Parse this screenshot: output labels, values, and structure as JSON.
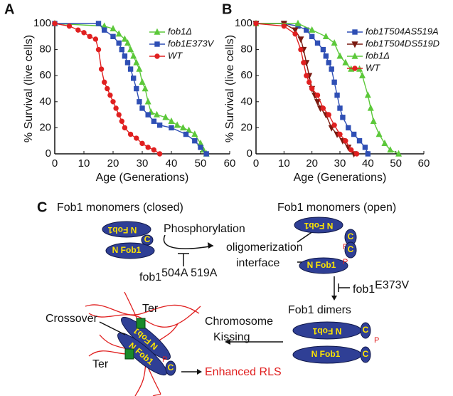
{
  "chart_data": [
    {
      "type": "line",
      "x_label": "Age (Generations)",
      "y_label": "% Survival (live cells)",
      "xlim": [
        0,
        60
      ],
      "ylim": [
        0,
        100
      ],
      "xticks": [
        0,
        10,
        20,
        30,
        40,
        50,
        60
      ],
      "yticks": [
        0,
        20,
        40,
        60,
        80,
        100
      ],
      "legend": "upper right",
      "series": [
        {
          "name": "fob1Δ",
          "color": "#5cc83a",
          "marker": "triangle",
          "x": [
            0,
            17,
            20,
            22,
            24,
            25,
            26,
            27,
            28,
            29,
            30,
            31,
            32,
            33,
            35,
            38,
            40,
            42,
            44,
            46,
            48,
            50,
            51,
            52
          ],
          "values": [
            100,
            98,
            96,
            92,
            88,
            85,
            80,
            75,
            70,
            65,
            55,
            50,
            40,
            32,
            30,
            28,
            25,
            22,
            20,
            18,
            15,
            8,
            3,
            0
          ]
        },
        {
          "name": "fob1E373V",
          "color": "#2f4fb5",
          "marker": "square",
          "x": [
            0,
            15,
            17,
            20,
            22,
            23,
            24,
            25,
            26,
            27,
            28,
            29,
            30,
            32,
            34,
            36,
            40,
            45,
            48,
            50,
            52
          ],
          "values": [
            100,
            100,
            95,
            90,
            85,
            80,
            75,
            70,
            65,
            58,
            50,
            40,
            35,
            30,
            25,
            22,
            20,
            15,
            10,
            5,
            0
          ]
        },
        {
          "name": "WT",
          "color": "#e02020",
          "marker": "circle",
          "x": [
            0,
            5,
            8,
            10,
            12,
            14,
            15,
            16,
            17,
            18,
            19,
            20,
            21,
            22,
            23,
            24,
            26,
            28,
            30,
            32,
            34,
            36
          ],
          "values": [
            100,
            98,
            95,
            93,
            90,
            88,
            80,
            65,
            55,
            50,
            45,
            40,
            35,
            30,
            25,
            20,
            15,
            12,
            8,
            5,
            3,
            0
          ]
        }
      ]
    },
    {
      "type": "line",
      "x_label": "Age (Generations)",
      "y_label": "% Survival (live cells)",
      "xlim": [
        0,
        60
      ],
      "ylim": [
        0,
        100
      ],
      "xticks": [
        0,
        10,
        20,
        30,
        40,
        50,
        60
      ],
      "yticks": [
        0,
        20,
        40,
        60,
        80,
        100
      ],
      "legend": "upper right",
      "series": [
        {
          "name": "fob1T504AS519A",
          "color": "#2f4fb5",
          "marker": "square",
          "x": [
            0,
            10,
            15,
            18,
            20,
            22,
            24,
            25,
            26,
            27,
            28,
            29,
            30,
            31,
            33,
            35,
            37,
            39,
            40
          ],
          "values": [
            100,
            100,
            98,
            95,
            90,
            85,
            80,
            75,
            70,
            65,
            55,
            45,
            35,
            28,
            20,
            15,
            10,
            5,
            0
          ]
        },
        {
          "name": "fob1T504DS519D",
          "color": "#7a1a10",
          "marker": "triangle-down",
          "x": [
            0,
            10,
            14,
            16,
            17,
            18,
            19,
            20,
            21,
            22,
            23,
            25,
            27,
            29,
            31,
            33,
            35
          ],
          "values": [
            100,
            100,
            95,
            88,
            80,
            70,
            60,
            50,
            45,
            40,
            35,
            30,
            20,
            15,
            10,
            5,
            0
          ]
        },
        {
          "name": "fob1Δ",
          "color": "#5cc83a",
          "marker": "triangle",
          "x": [
            0,
            15,
            20,
            25,
            28,
            30,
            32,
            34,
            37,
            38,
            40,
            41,
            42,
            44,
            46,
            48,
            51
          ],
          "values": [
            100,
            100,
            95,
            90,
            85,
            75,
            70,
            65,
            65,
            60,
            45,
            35,
            25,
            15,
            8,
            3,
            0
          ]
        },
        {
          "name": "WT",
          "color": "#e02020",
          "marker": "circle",
          "x": [
            0,
            10,
            14,
            16,
            17,
            18,
            19,
            20,
            22,
            24,
            26,
            28,
            30,
            32,
            34,
            36
          ],
          "values": [
            100,
            98,
            92,
            80,
            70,
            60,
            55,
            50,
            45,
            35,
            30,
            22,
            15,
            10,
            3,
            0
          ]
        }
      ]
    }
  ],
  "panels": [
    "A",
    "B",
    "C"
  ],
  "diagram": {
    "closed_label": "Fob1 monomers (closed)",
    "open_label": "Fob1 monomers (open)",
    "phosphorylation": "Phosphorylation",
    "oligomerization": "oligomerization",
    "interface": "interface",
    "mutant_a": "fob1",
    "mutant_a_sup": "504A 519A",
    "mutant_b": "fob1",
    "mutant_b_sup": "E373V",
    "dimers": "Fob1 dimers",
    "chromosome": "Chromosome",
    "kissing": "Kissing",
    "crossover": "Crossover",
    "ter": "Ter",
    "enhanced": "Enhanced RLS",
    "protein": "N Fob1",
    "c_term": "C",
    "phospho": "P"
  }
}
